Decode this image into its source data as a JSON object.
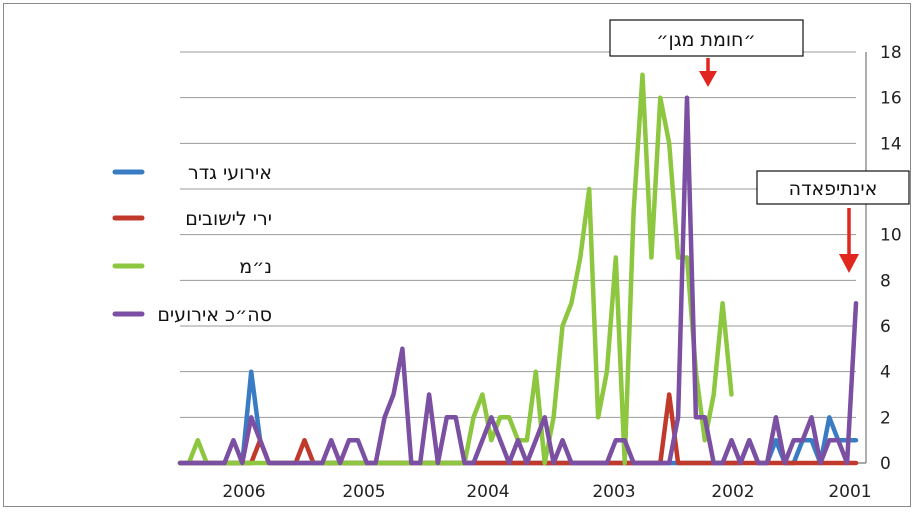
{
  "chart_data": {
    "type": "line",
    "x_axis_direction": "right-to-left",
    "x_tick_labels": [
      "2001",
      "2002",
      "2003",
      "2004",
      "2005",
      "2006"
    ],
    "ylim": [
      0,
      18
    ],
    "y_ticks": [
      0,
      2,
      4,
      6,
      8,
      10,
      12,
      14,
      16,
      18
    ],
    "y_axis_position": "right",
    "grid": true,
    "legend_placement": "left",
    "series": [
      {
        "name": "אירועי גדר",
        "color": "#3a7cc4",
        "values": [
          1,
          1,
          1,
          2,
          0,
          1,
          1,
          0,
          0,
          1,
          0,
          0,
          1,
          0,
          0,
          0,
          0,
          0,
          0,
          0,
          0,
          0,
          0,
          0,
          0,
          0,
          0,
          0,
          0,
          0,
          0,
          0,
          0,
          0,
          0,
          0,
          0,
          0,
          0,
          0,
          0,
          0,
          0,
          0,
          0,
          0,
          0,
          0,
          0,
          0,
          0,
          0,
          0,
          0,
          0,
          0,
          0,
          0,
          0,
          0,
          0,
          0,
          0,
          0,
          0,
          0,
          0,
          1,
          4,
          0,
          0,
          0,
          0,
          0,
          0,
          0,
          0
        ]
      },
      {
        "name": "ירי לישובים",
        "color": "#c0392b",
        "values": [
          0,
          0,
          0,
          0,
          0,
          0,
          0,
          0,
          0,
          0,
          0,
          0,
          0,
          0,
          0,
          0,
          0,
          0,
          0,
          0,
          0,
          3,
          0,
          0,
          0,
          0,
          0,
          0,
          0,
          0,
          0,
          0,
          0,
          0,
          0,
          0,
          0,
          0,
          0,
          0,
          0,
          0,
          0,
          0,
          0,
          0,
          0,
          0,
          0,
          0,
          0,
          0,
          0,
          0,
          0,
          0,
          0,
          0,
          0,
          0,
          0,
          0,
          1,
          0,
          0,
          0,
          0,
          1,
          0,
          0,
          0,
          0,
          0,
          0,
          0,
          0,
          0
        ]
      },
      {
        "name": "נ״מ",
        "color": "#8dc63f",
        "values": [
          null,
          null,
          null,
          null,
          null,
          null,
          null,
          null,
          null,
          null,
          null,
          null,
          null,
          null,
          3,
          7,
          3,
          1,
          4,
          9,
          9,
          14,
          16,
          9,
          17,
          11,
          0,
          9,
          4,
          2,
          12,
          9,
          7,
          6,
          2,
          0,
          4,
          1,
          1,
          2,
          2,
          1,
          3,
          2,
          0,
          0,
          0,
          0,
          0,
          0,
          0,
          0,
          0,
          0,
          0,
          0,
          0,
          0,
          0,
          0,
          0,
          0,
          0,
          0,
          0,
          0,
          0,
          0,
          0,
          0,
          0,
          0,
          0,
          0,
          1,
          0,
          0
        ]
      },
      {
        "name": "סה״כ אירועים",
        "color": "#7b4fa2",
        "values": [
          7,
          0,
          1,
          1,
          0,
          2,
          1,
          1,
          0,
          2,
          0,
          0,
          1,
          0,
          1,
          0,
          0,
          2,
          2,
          16,
          2,
          0,
          0,
          0,
          0,
          0,
          1,
          1,
          0,
          0,
          0,
          0,
          0,
          1,
          0,
          2,
          1,
          0,
          1,
          0,
          1,
          2,
          1,
          0,
          0,
          2,
          2,
          0,
          3,
          0,
          0,
          5,
          3,
          2,
          0,
          0,
          1,
          1,
          0,
          1,
          0,
          0,
          0,
          0,
          0,
          0,
          0,
          1,
          2,
          0,
          1,
          0,
          0,
          0,
          0,
          0,
          0
        ]
      }
    ],
    "annotations": [
      {
        "text": "אינתיפאדה",
        "arrow_color": "#e0261f"
      },
      {
        "text": "״חומת מגן״",
        "arrow_color": "#e0261f"
      }
    ]
  }
}
